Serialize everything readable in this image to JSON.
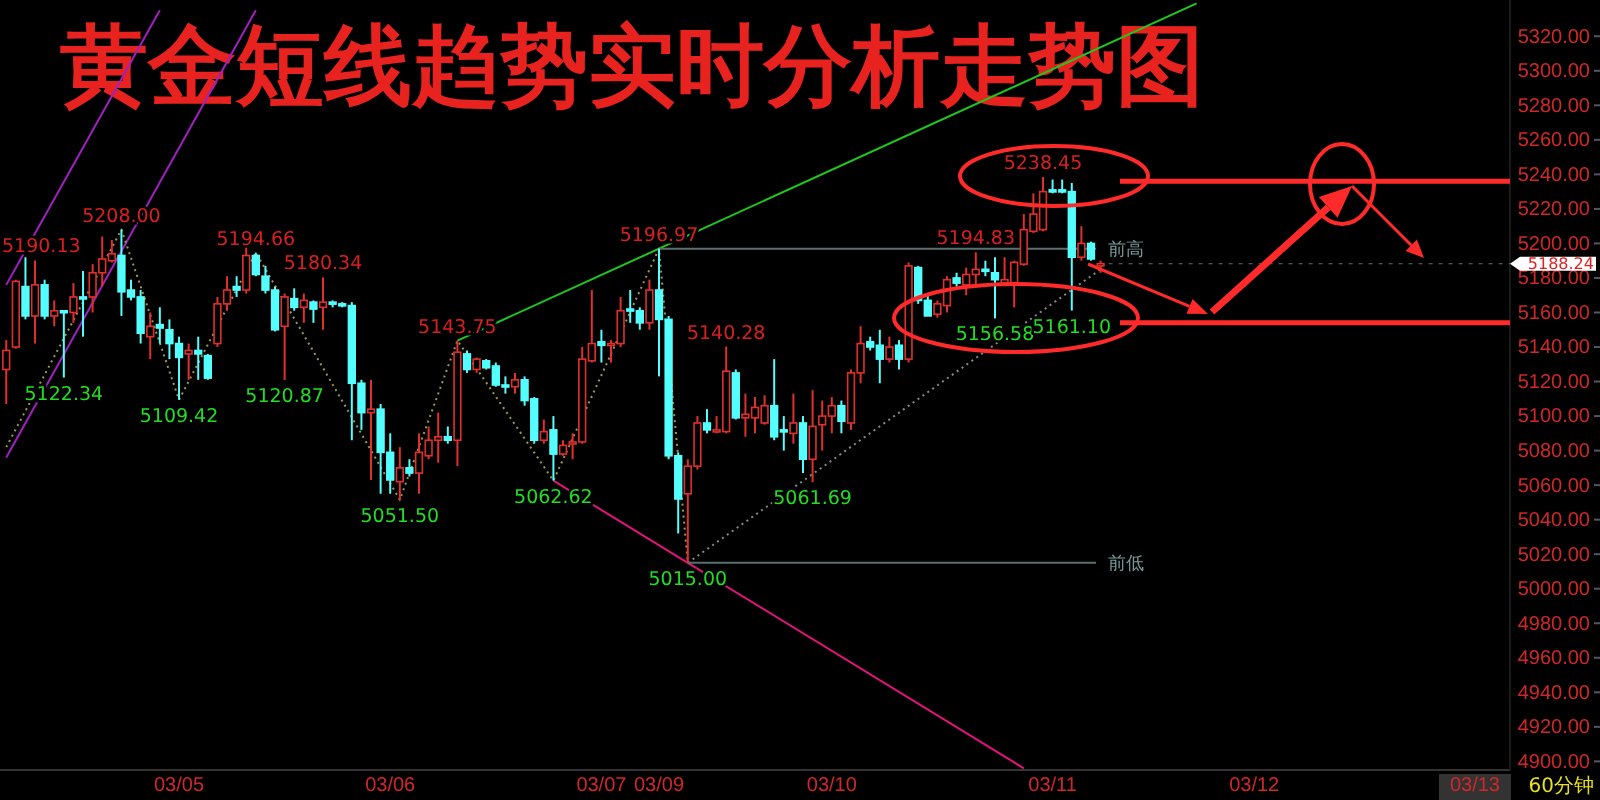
{
  "chart_data": {
    "type": "candlestick",
    "title": "黄金短线趋势实时分析走势图",
    "categories": [
      null,
      null,
      null,
      null,
      null,
      null,
      null,
      null,
      null,
      null,
      null,
      null,
      null,
      null,
      null,
      null,
      null,
      null,
      "03/05",
      null,
      null,
      null,
      null,
      null,
      null,
      null,
      null,
      null,
      null,
      null,
      null,
      null,
      null,
      null,
      null,
      null,
      null,
      null,
      null,
      null,
      "03/06",
      null,
      null,
      null,
      null,
      null,
      null,
      null,
      null,
      null,
      null,
      null,
      null,
      null,
      null,
      null,
      null,
      null,
      null,
      null,
      null,
      null,
      "03/07",
      null,
      null,
      null,
      null,
      null,
      "03/09",
      null,
      null,
      null,
      null,
      null,
      null,
      null,
      null,
      null,
      null,
      null,
      null,
      null,
      null,
      null,
      null,
      null,
      "03/10",
      null,
      null,
      null,
      null,
      null,
      null,
      null,
      null,
      null,
      null,
      null,
      null,
      null,
      null,
      null,
      null,
      null,
      null,
      null,
      null,
      null,
      null,
      "03/11",
      null,
      null,
      null,
      null,
      null,
      null,
      null,
      null,
      null,
      null,
      null,
      null,
      null,
      null,
      null,
      null,
      null,
      null,
      null,
      null,
      "03/12",
      null,
      null,
      null,
      null,
      null,
      null,
      null,
      null,
      null,
      null,
      null,
      null,
      null,
      null,
      null,
      null,
      null,
      null,
      null,
      null,
      null,
      null,
      "03/13",
      null,
      null,
      null
    ],
    "ohlc": [
      [
        5127,
        5144,
        5107,
        5138
      ],
      [
        5140,
        5179,
        5139,
        5178
      ],
      [
        5175,
        5192,
        5156,
        5158
      ],
      [
        5158,
        5190.13,
        5142,
        5176
      ],
      [
        5176,
        5179,
        5156,
        5158
      ],
      [
        5158,
        5167,
        5152,
        5161
      ],
      [
        5161,
        5161,
        5122.34,
        5160
      ],
      [
        5160,
        5177,
        5154,
        5169
      ],
      [
        5169,
        5184,
        5146,
        5168
      ],
      [
        5169,
        5188,
        5160,
        5183
      ],
      [
        5183,
        5204,
        5175,
        5191
      ],
      [
        5190,
        5202,
        5189,
        5194
      ],
      [
        5193,
        5208,
        5158,
        5172
      ],
      [
        5173,
        5179,
        5167,
        5169
      ],
      [
        5169,
        5173,
        5142,
        5148
      ],
      [
        5146,
        5160,
        5133,
        5152
      ],
      [
        5153,
        5163,
        5142,
        5151
      ],
      [
        5150,
        5156,
        5133,
        5142
      ],
      [
        5142,
        5146,
        5109.42,
        5134
      ],
      [
        5136,
        5142,
        5121,
        5138
      ],
      [
        5138,
        5146,
        5121,
        5136
      ],
      [
        5135,
        5136,
        5121,
        5122
      ],
      [
        5142,
        5169,
        5140,
        5165
      ],
      [
        5165,
        5181,
        5161,
        5173
      ],
      [
        5175,
        5181,
        5169,
        5173
      ],
      [
        5173,
        5198,
        5171,
        5193
      ],
      [
        5193,
        5194.66,
        5181,
        5182
      ],
      [
        5181,
        5187,
        5171,
        5173
      ],
      [
        5173,
        5175,
        5149,
        5150
      ],
      [
        5152,
        5171,
        5120.87,
        5169
      ],
      [
        5168,
        5174,
        5161,
        5163
      ],
      [
        5163,
        5171,
        5154,
        5167
      ],
      [
        5166,
        5167,
        5154,
        5162
      ],
      [
        5163,
        5180.34,
        5150,
        5166
      ],
      [
        5166,
        5167,
        5163,
        5165
      ],
      [
        5165,
        5166,
        5163,
        5164
      ],
      [
        5164,
        5166,
        5086,
        5119
      ],
      [
        5119,
        5121,
        5092,
        5102
      ],
      [
        5102,
        5121,
        5063,
        5104
      ],
      [
        5104,
        5107,
        5055,
        5079
      ],
      [
        5079,
        5090,
        5055,
        5063
      ],
      [
        5062,
        5082,
        5051.5,
        5070
      ],
      [
        5070,
        5075,
        5065,
        5067
      ],
      [
        5067,
        5090,
        5055,
        5079
      ],
      [
        5077,
        5094,
        5075,
        5086
      ],
      [
        5086,
        5102,
        5073,
        5088
      ],
      [
        5088,
        5094,
        5084,
        5086
      ],
      [
        5086,
        5143.75,
        5071,
        5137
      ],
      [
        5136,
        5138,
        5125,
        5127
      ],
      [
        5127,
        5134,
        5125,
        5133
      ],
      [
        5132,
        5133,
        5127,
        5128
      ],
      [
        5129,
        5131,
        5117,
        5118
      ],
      [
        5118,
        5123,
        5113,
        5117
      ],
      [
        5117,
        5125,
        5113,
        5121
      ],
      [
        5121,
        5123,
        5106,
        5109
      ],
      [
        5110,
        5111,
        5084,
        5086
      ],
      [
        5086,
        5098,
        5084,
        5091
      ],
      [
        5092,
        5100,
        5062.62,
        5078
      ],
      [
        5078,
        5086,
        5077,
        5083
      ],
      [
        5084,
        5090,
        5075,
        5085
      ],
      [
        5085,
        5140,
        5084,
        5133
      ],
      [
        5132,
        5173,
        5131,
        5142
      ],
      [
        5143,
        5150,
        5131,
        5141
      ],
      [
        5141,
        5144,
        5131,
        5142
      ],
      [
        5142,
        5169,
        5140,
        5161
      ],
      [
        5162,
        5173,
        5154,
        5161
      ],
      [
        5161,
        5163,
        5150,
        5154
      ],
      [
        5154,
        5179,
        5150,
        5173
      ],
      [
        5173,
        5196.97,
        5123,
        5156
      ],
      [
        5156,
        5158,
        5075,
        5077
      ],
      [
        5077,
        5079,
        5032,
        5052
      ],
      [
        5055,
        5075,
        5015,
        5071
      ],
      [
        5071,
        5100,
        5069,
        5096
      ],
      [
        5096,
        5104,
        5090,
        5092
      ],
      [
        5091,
        5100,
        5090,
        5092
      ],
      [
        5091,
        5140.28,
        5090,
        5126
      ],
      [
        5125,
        5127,
        5098,
        5099
      ],
      [
        5099,
        5113,
        5088,
        5101
      ],
      [
        5099,
        5111,
        5090,
        5105
      ],
      [
        5096,
        5112,
        5095,
        5106
      ],
      [
        5106,
        5133,
        5086,
        5088
      ],
      [
        5092,
        5100,
        5080,
        5091
      ],
      [
        5090,
        5113,
        5084,
        5096
      ],
      [
        5096,
        5100,
        5067,
        5075
      ],
      [
        5075,
        5115,
        5061.69,
        5094
      ],
      [
        5095,
        5109,
        5080,
        5100
      ],
      [
        5100,
        5111,
        5090,
        5106
      ],
      [
        5106,
        5109,
        5090,
        5097
      ],
      [
        5096,
        5127,
        5092,
        5125
      ],
      [
        5125,
        5152,
        5119,
        5142
      ],
      [
        5143,
        5146,
        5138,
        5140
      ],
      [
        5141,
        5150,
        5119,
        5133
      ],
      [
        5133,
        5146,
        5131,
        5140
      ],
      [
        5141,
        5144,
        5127,
        5133
      ],
      [
        5133,
        5189,
        5131,
        5187
      ],
      [
        5186,
        5187,
        5165,
        5167
      ],
      [
        5167,
        5170,
        5158,
        5158
      ],
      [
        5159,
        5167,
        5157,
        5165
      ],
      [
        5164,
        5181,
        5160,
        5179
      ],
      [
        5180,
        5183,
        5175,
        5177
      ],
      [
        5176,
        5186,
        5170,
        5182
      ],
      [
        5182,
        5194.83,
        5175,
        5185
      ],
      [
        5185,
        5190,
        5181,
        5184
      ],
      [
        5183,
        5192,
        5156.58,
        5179
      ],
      [
        5177,
        5192,
        5176,
        5179
      ],
      [
        5177,
        5190,
        5163,
        5189
      ],
      [
        5188,
        5217,
        5187,
        5208
      ],
      [
        5207,
        5229,
        5206,
        5217
      ],
      [
        5208,
        5238.45,
        5207,
        5230
      ],
      [
        5231,
        5237,
        5229,
        5230
      ],
      [
        5231,
        5237,
        5229,
        5230
      ],
      [
        5230,
        5235,
        5161.1,
        5192
      ],
      [
        5192,
        5210,
        5190,
        5200
      ],
      [
        5200,
        5201,
        5190,
        5191
      ],
      [
        5187,
        5190,
        5183,
        5188.24
      ],
      null,
      null,
      null,
      null,
      null,
      null,
      null,
      null,
      null,
      null,
      null,
      null,
      null,
      null,
      null,
      null,
      null,
      null,
      null,
      null,
      null,
      null,
      null,
      null,
      null,
      null,
      null,
      null,
      null,
      null,
      null,
      null,
      null,
      null,
      null,
      null,
      null,
      null,
      null,
      null,
      null,
      null
    ],
    "series": [
      {
        "type": "line",
        "color": "#1ec81e",
        "line_style": "solid",
        "values": [
          null,
          null,
          null,
          null,
          null,
          null,
          null,
          null,
          null,
          null,
          null,
          null,
          null,
          null,
          null,
          null,
          null,
          null,
          null,
          null,
          null,
          null,
          null,
          null,
          null,
          null,
          null,
          null,
          null,
          null,
          null,
          null,
          null,
          null,
          null,
          null,
          null,
          null,
          null,
          null,
          null,
          null,
          null,
          null,
          null,
          null,
          null,
          5143.75,
          null,
          null,
          null,
          null,
          null,
          null,
          null,
          null,
          null,
          null,
          null,
          null,
          null,
          null,
          null,
          null,
          null,
          null,
          null,
          null,
          5196.97,
          null,
          null,
          null,
          null,
          null,
          null,
          null,
          null,
          null,
          null,
          null,
          null,
          null,
          null,
          null,
          null,
          null,
          null,
          null,
          null,
          null,
          null,
          null,
          null,
          null,
          null,
          null,
          null,
          null,
          null,
          null,
          null,
          null,
          null,
          null,
          null,
          null,
          null,
          null,
          null,
          null,
          null,
          null,
          null,
          null,
          null,
          null,
          null,
          null,
          null,
          null,
          null,
          null,
          null,
          null,
          5339,
          null,
          null,
          null,
          null,
          null,
          null,
          null,
          null,
          null,
          null,
          null,
          null,
          null,
          null,
          null,
          null,
          null,
          null,
          null,
          null,
          null,
          null,
          null,
          null,
          null,
          null,
          null,
          null,
          null,
          null,
          null,
          null
        ]
      },
      {
        "type": "line",
        "color": "#e0147a",
        "line_style": "solid",
        "values": [
          null,
          null,
          null,
          null,
          null,
          null,
          null,
          null,
          null,
          null,
          null,
          null,
          null,
          null,
          null,
          null,
          null,
          null,
          null,
          null,
          null,
          null,
          null,
          null,
          null,
          null,
          null,
          null,
          null,
          null,
          null,
          null,
          null,
          null,
          null,
          null,
          null,
          null,
          null,
          null,
          null,
          null,
          null,
          null,
          null,
          null,
          null,
          null,
          null,
          null,
          null,
          null,
          null,
          null,
          null,
          null,
          null,
          5062.62,
          null,
          null,
          null,
          null,
          null,
          null,
          null,
          null,
          null,
          null,
          null,
          null,
          null,
          5015,
          null,
          null,
          null,
          null,
          null,
          null,
          null,
          null,
          null,
          null,
          null,
          null,
          null,
          null,
          null,
          null,
          null,
          null,
          null,
          null,
          null,
          null,
          null,
          null,
          null,
          null,
          null,
          null,
          null,
          null,
          null,
          null,
          null,
          null,
          4896,
          null,
          null,
          null,
          null,
          null,
          null,
          null,
          null,
          null,
          null,
          null,
          null,
          null,
          null,
          null,
          null,
          null,
          null,
          null,
          null,
          null,
          null,
          null,
          null,
          null,
          null,
          null,
          null,
          null,
          null,
          null,
          null,
          null,
          null,
          null,
          null,
          null,
          null,
          null,
          null,
          null,
          null,
          null,
          null,
          null,
          null,
          null,
          null,
          null,
          null
        ]
      },
      {
        "type": "line",
        "color": "#a020c0",
        "line_style": "solid",
        "values": [
          5176,
          null,
          null,
          null,
          null,
          null,
          null,
          null,
          null,
          null,
          null,
          null,
          null,
          null,
          null,
          null,
          5335,
          null,
          null,
          null,
          null,
          null,
          null,
          null,
          null,
          null,
          null,
          null,
          null,
          null,
          null,
          null,
          null,
          null,
          null,
          null,
          null,
          null,
          null,
          null,
          null,
          null,
          null,
          null,
          null,
          null,
          null,
          null,
          null,
          null,
          null,
          null,
          null,
          null,
          null,
          null,
          null,
          null,
          null,
          null,
          null,
          null,
          null,
          null,
          null,
          null,
          null,
          null,
          null,
          null,
          null,
          null,
          null,
          null,
          null,
          null,
          null,
          null,
          null,
          null,
          null,
          null,
          null,
          null,
          null,
          null,
          null,
          null,
          null,
          null,
          null,
          null,
          null,
          null,
          null,
          null,
          null,
          null,
          null,
          null,
          null,
          null,
          null,
          null,
          null,
          null,
          null,
          null,
          null,
          null,
          null,
          null,
          null,
          null,
          null,
          null,
          null,
          null,
          null,
          null,
          null,
          null,
          null,
          null,
          null,
          null,
          null,
          null,
          null,
          null,
          null,
          null,
          null,
          null,
          null,
          null,
          null,
          null,
          null,
          null,
          null,
          null,
          null,
          null,
          null,
          null,
          null,
          null,
          null,
          null,
          null,
          null,
          null,
          null,
          null,
          null,
          null
        ]
      },
      {
        "type": "line",
        "color": "#a020c0",
        "line_style": "solid",
        "values": [
          5076,
          null,
          null,
          null,
          null,
          null,
          null,
          null,
          null,
          null,
          null,
          null,
          null,
          null,
          null,
          null,
          null,
          null,
          null,
          null,
          null,
          null,
          null,
          null,
          null,
          null,
          5335,
          null,
          null,
          null,
          null,
          null,
          null,
          null,
          null,
          null,
          null,
          null,
          null,
          null,
          null,
          null,
          null,
          null,
          null,
          null,
          null,
          null,
          null,
          null,
          null,
          null,
          null,
          null,
          null,
          null,
          null,
          null,
          null,
          null,
          null,
          null,
          null,
          null,
          null,
          null,
          null,
          null,
          null,
          null,
          null,
          null,
          null,
          null,
          null,
          null,
          null,
          null,
          null,
          null,
          null,
          null,
          null,
          null,
          null,
          null,
          null,
          null,
          null,
          null,
          null,
          null,
          null,
          null,
          null,
          null,
          null,
          null,
          null,
          null,
          null,
          null,
          null,
          null,
          null,
          null,
          null,
          null,
          null,
          null,
          null,
          null,
          null,
          null,
          null,
          null,
          null,
          null,
          null,
          null,
          null,
          null,
          null,
          null,
          null,
          null,
          null,
          null,
          null,
          null,
          null,
          null,
          null,
          null,
          null,
          null,
          null,
          null,
          null,
          null,
          null,
          null,
          null,
          null,
          null,
          null,
          null,
          null,
          null,
          null,
          null,
          null,
          null,
          null,
          null,
          null,
          null
        ]
      },
      {
        "type": "line",
        "color": "#9a9a50",
        "line_style": "dotted",
        "values": [
          5082,
          null,
          null,
          null,
          null,
          null,
          null,
          null,
          null,
          null,
          null,
          null,
          5208,
          null,
          null,
          null,
          null,
          null,
          5109.42,
          null,
          null,
          null,
          null,
          null,
          null,
          null,
          5194.66,
          null,
          null,
          null,
          null,
          null,
          null,
          null,
          null,
          null,
          null,
          null,
          null,
          null,
          null,
          5051.5,
          null,
          null,
          null,
          null,
          null,
          5143.75,
          null,
          null,
          null,
          null,
          null,
          null,
          null,
          null,
          null,
          5062.62,
          null,
          null,
          null,
          null,
          null,
          null,
          null,
          null,
          null,
          null,
          5196.97,
          null,
          null,
          5015,
          null,
          null,
          null,
          null,
          null,
          null,
          null,
          null,
          null,
          null,
          null,
          null,
          null,
          null,
          null,
          null,
          null,
          null,
          null,
          null,
          null,
          null,
          null,
          null,
          null,
          null,
          null,
          null,
          null,
          null,
          null,
          null,
          null,
          null,
          null,
          null,
          null,
          null,
          null,
          null,
          null,
          null,
          null,
          null,
          null,
          null,
          null,
          null,
          null,
          null,
          null,
          null,
          null,
          null,
          null,
          null,
          null,
          null,
          null,
          null,
          null,
          null,
          null,
          null,
          null,
          null,
          null,
          null,
          null,
          null,
          null,
          null,
          null,
          null,
          null,
          null,
          null,
          null,
          null,
          null,
          null,
          null,
          null,
          null,
          null
        ]
      },
      {
        "type": "line",
        "color": "#8a8a8a",
        "line_style": "dotted",
        "values": [
          null,
          null,
          null,
          null,
          null,
          null,
          null,
          null,
          null,
          null,
          null,
          null,
          null,
          null,
          null,
          null,
          null,
          null,
          null,
          null,
          null,
          null,
          null,
          null,
          null,
          null,
          null,
          null,
          null,
          null,
          null,
          null,
          null,
          null,
          null,
          null,
          null,
          null,
          null,
          null,
          null,
          null,
          null,
          null,
          null,
          null,
          null,
          null,
          null,
          null,
          null,
          null,
          null,
          null,
          null,
          null,
          null,
          null,
          null,
          null,
          null,
          null,
          null,
          null,
          null,
          null,
          null,
          null,
          null,
          null,
          null,
          5015,
          null,
          null,
          null,
          null,
          null,
          null,
          null,
          null,
          null,
          null,
          null,
          null,
          null,
          null,
          null,
          null,
          null,
          null,
          null,
          null,
          null,
          null,
          null,
          null,
          null,
          null,
          null,
          null,
          null,
          null,
          null,
          null,
          null,
          null,
          null,
          null,
          null,
          null,
          null,
          null,
          null,
          null,
          5185,
          null,
          null,
          null,
          null,
          null,
          null,
          null,
          null,
          null,
          null,
          null,
          null,
          null,
          null,
          null,
          null,
          null,
          null,
          null,
          null,
          null,
          null,
          null,
          null,
          null,
          null,
          null,
          null,
          null,
          null,
          null,
          null,
          null,
          null,
          null,
          null,
          null,
          null,
          null,
          null,
          null,
          null
        ]
      }
    ],
    "ylim": [
      4895,
      5341
    ],
    "yticks": [
      {
        "value": 4900,
        "label": "4900.00"
      },
      {
        "value": 4920,
        "label": "4920.00"
      },
      {
        "value": 4940,
        "label": "4940.00"
      },
      {
        "value": 4960,
        "label": "4960.00"
      },
      {
        "value": 4980,
        "label": "4980.00"
      },
      {
        "value": 5000,
        "label": "5000.00"
      },
      {
        "value": 5020,
        "label": "5020.00"
      },
      {
        "value": 5040,
        "label": "5040.00"
      },
      {
        "value": 5060,
        "label": "5060.00"
      },
      {
        "value": 5080,
        "label": "5080.00"
      },
      {
        "value": 5100,
        "label": "5100.00"
      },
      {
        "value": 5120,
        "label": "5120.00"
      },
      {
        "value": 5140,
        "label": "5140.00"
      },
      {
        "value": 5160,
        "label": "5160.00"
      },
      {
        "value": 5180,
        "label": "5180.00"
      },
      {
        "value": 5200,
        "label": "5200.00"
      },
      {
        "value": 5220,
        "label": "5220.00"
      },
      {
        "value": 5240,
        "label": "5240.00"
      },
      {
        "value": 5260,
        "label": "5260.00"
      },
      {
        "value": 5280,
        "label": "5280.00"
      },
      {
        "value": 5300,
        "label": "5300.00"
      },
      {
        "value": 5320,
        "label": "5320.00"
      }
    ],
    "ref_lines": [
      {
        "axis": "y",
        "value": 5196.97,
        "label": "前高",
        "color": "#5a7070"
      },
      {
        "axis": "y",
        "value": 5015,
        "label": "前低",
        "color": "#5a7070"
      },
      {
        "axis": "y",
        "value": 5188.24,
        "label": "5188.24"
      },
      {
        "axis": "y",
        "value": 5236,
        "color": "#ff2a2a"
      },
      {
        "axis": "y",
        "value": 5154,
        "color": "#ff2a2a"
      }
    ],
    "annotations": [
      {
        "text": "5190.13",
        "y": 5190.13
      },
      {
        "text": "5208.00",
        "y": 5208
      },
      {
        "text": "5194.66",
        "y": 5194.66
      },
      {
        "text": "5180.34",
        "y": 5180.34
      },
      {
        "text": "5143.75",
        "y": 5143.75
      },
      {
        "text": "5196.97",
        "y": 5196.97
      },
      {
        "text": "5140.28",
        "y": 5140.28
      },
      {
        "text": "5194.83",
        "y": 5194.83
      },
      {
        "text": "5238.45",
        "y": 5238.45
      },
      {
        "text": "5122.34",
        "y": 5122.34
      },
      {
        "text": "5109.42",
        "y": 5109.42
      },
      {
        "text": "5120.87",
        "y": 5120.87
      },
      {
        "text": "5051.50",
        "y": 5051.5
      },
      {
        "text": "5062.62",
        "y": 5062.62
      },
      {
        "text": "5015.00",
        "y": 5015
      },
      {
        "text": "5061.69",
        "y": 5061.69
      },
      {
        "text": "5156.58",
        "y": 5156.58
      },
      {
        "text": "5161.10",
        "y": 5161.1
      },
      "60分钟"
    ]
  }
}
